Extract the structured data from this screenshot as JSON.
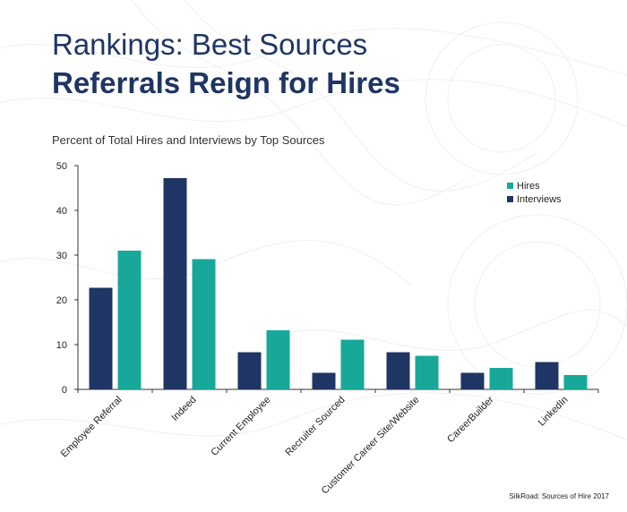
{
  "header": {
    "title_line1": "Rankings: Best Sources",
    "title_line2": "Referrals Reign for Hires",
    "subtitle": "Percent of Total Hires and Interviews by Top Sources"
  },
  "footer": {
    "source": "SilkRoad: Sources of Hire 2017"
  },
  "colors": {
    "hires": "#17a89a",
    "interviews": "#1f3563",
    "axis": "#333333"
  },
  "chart_data": {
    "type": "bar",
    "title": "",
    "xlabel": "",
    "ylabel": "",
    "ylim": [
      0,
      50
    ],
    "yticks": [
      0,
      10,
      20,
      30,
      40,
      50
    ],
    "grid": false,
    "legend_position": "top-right",
    "categories": [
      "Employee Referral",
      "Indeed",
      "Current Employee",
      "Recruiter Sourced",
      "Customer Career Site/Website",
      "CareerBuilder",
      "LinkedIn"
    ],
    "series": [
      {
        "name": "Interviews",
        "values": [
          22.7,
          47.2,
          8.3,
          3.7,
          8.3,
          3.7,
          6.1
        ]
      },
      {
        "name": "Hires",
        "values": [
          31.0,
          29.1,
          13.2,
          11.1,
          7.5,
          4.8,
          3.2
        ]
      }
    ],
    "legend": [
      {
        "name": "Hires",
        "color_key": "hires"
      },
      {
        "name": "Interviews",
        "color_key": "interviews"
      }
    ]
  }
}
